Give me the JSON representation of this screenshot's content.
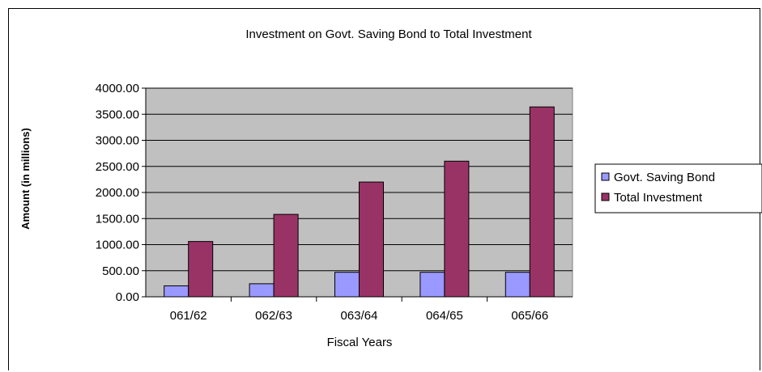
{
  "chart_data": {
    "type": "bar",
    "title": "Investment on Govt. Saving Bond to Total Investment",
    "xlabel": "Fiscal Years",
    "ylabel": "Amount (in millions)",
    "categories": [
      "061/62",
      "062/63",
      "063/64",
      "064/65",
      "065/66"
    ],
    "ylim": [
      0,
      4000
    ],
    "yticks": [
      "0.00",
      "500.00",
      "1000.00",
      "1500.00",
      "2000.00",
      "2500.00",
      "3000.00",
      "3500.00",
      "4000.00"
    ],
    "grid": true,
    "legend_position": "right",
    "plot_background": "#c0c0c0",
    "series": [
      {
        "name": "Govt. Saving Bond",
        "color": "#9999ff",
        "values": [
          210,
          250,
          470,
          470,
          470
        ]
      },
      {
        "name": "Total Investment",
        "color": "#993366",
        "values": [
          1060,
          1580,
          2200,
          2600,
          3640
        ]
      }
    ]
  }
}
